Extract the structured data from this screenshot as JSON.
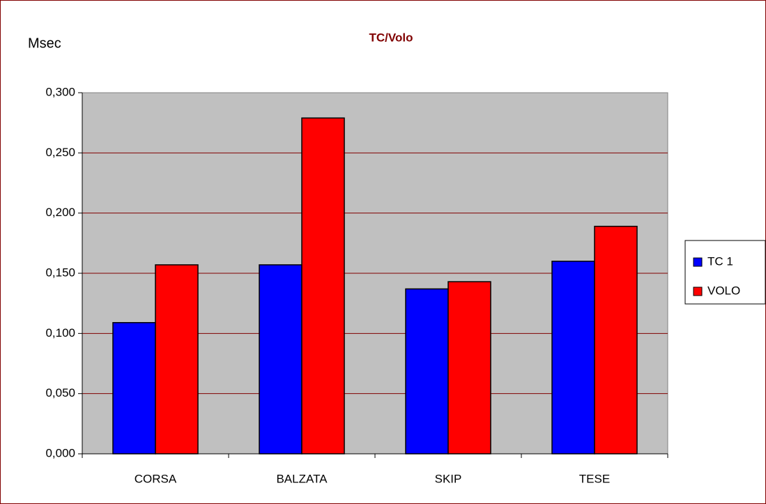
{
  "chart_data": {
    "type": "bar",
    "title": "TC/Volo",
    "y_label": "Msec",
    "categories": [
      "CORSA",
      "BALZATA",
      "SKIP",
      "TESE"
    ],
    "series": [
      {
        "name": "TC 1",
        "color": "#0000ff",
        "values": [
          0.109,
          0.157,
          0.137,
          0.16
        ]
      },
      {
        "name": "VOLO",
        "color": "#ff0000",
        "values": [
          0.157,
          0.279,
          0.143,
          0.189
        ]
      }
    ],
    "ylim": [
      0,
      0.3
    ],
    "yticks": [
      {
        "value": 0,
        "label": "0,000"
      },
      {
        "value": 0.05,
        "label": "0,050"
      },
      {
        "value": 0.1,
        "label": "0,100"
      },
      {
        "value": 0.15,
        "label": "0,150"
      },
      {
        "value": 0.2,
        "label": "0,200"
      },
      {
        "value": 0.25,
        "label": "0,250"
      },
      {
        "value": 0.3,
        "label": "0,300"
      }
    ],
    "grid": true,
    "legend": "right"
  }
}
